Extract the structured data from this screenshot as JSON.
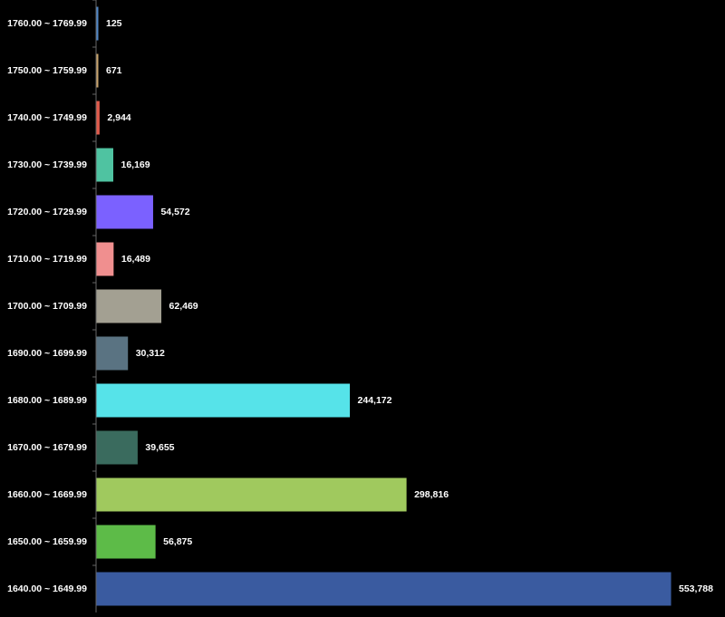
{
  "chart_data": {
    "type": "bar",
    "orientation": "horizontal",
    "categories": [
      "1760.00 ~ 1769.99",
      "1750.00 ~ 1759.99",
      "1740.00 ~ 1749.99",
      "1730.00 ~ 1739.99",
      "1720.00 ~ 1729.99",
      "1710.00 ~ 1719.99",
      "1700.00 ~ 1709.99",
      "1690.00 ~ 1699.99",
      "1680.00 ~ 1689.99",
      "1670.00 ~ 1679.99",
      "1660.00 ~ 1669.99",
      "1650.00 ~ 1659.99",
      "1640.00 ~ 1649.99"
    ],
    "values": [
      125,
      671,
      2944,
      16169,
      54572,
      16489,
      62469,
      30312,
      244172,
      39655,
      298816,
      56875,
      553788
    ],
    "value_labels": [
      "125",
      "671",
      "2,944",
      "16,169",
      "54,572",
      "16,489",
      "62,469",
      "30,312",
      "244,172",
      "39,655",
      "298,816",
      "56,875",
      "553,788"
    ],
    "colors": [
      "#4f86c6",
      "#c9a36b",
      "#e05a4b",
      "#4fc3a1",
      "#7b61ff",
      "#f08f8f",
      "#a3a092",
      "#5a7382",
      "#56e3e9",
      "#3a6b5e",
      "#a0c95e",
      "#5dbb48",
      "#3a5ba0"
    ],
    "xlim": [
      0,
      553788
    ],
    "grid": false,
    "legend": "none",
    "title": "",
    "xlabel": "",
    "ylabel": ""
  }
}
